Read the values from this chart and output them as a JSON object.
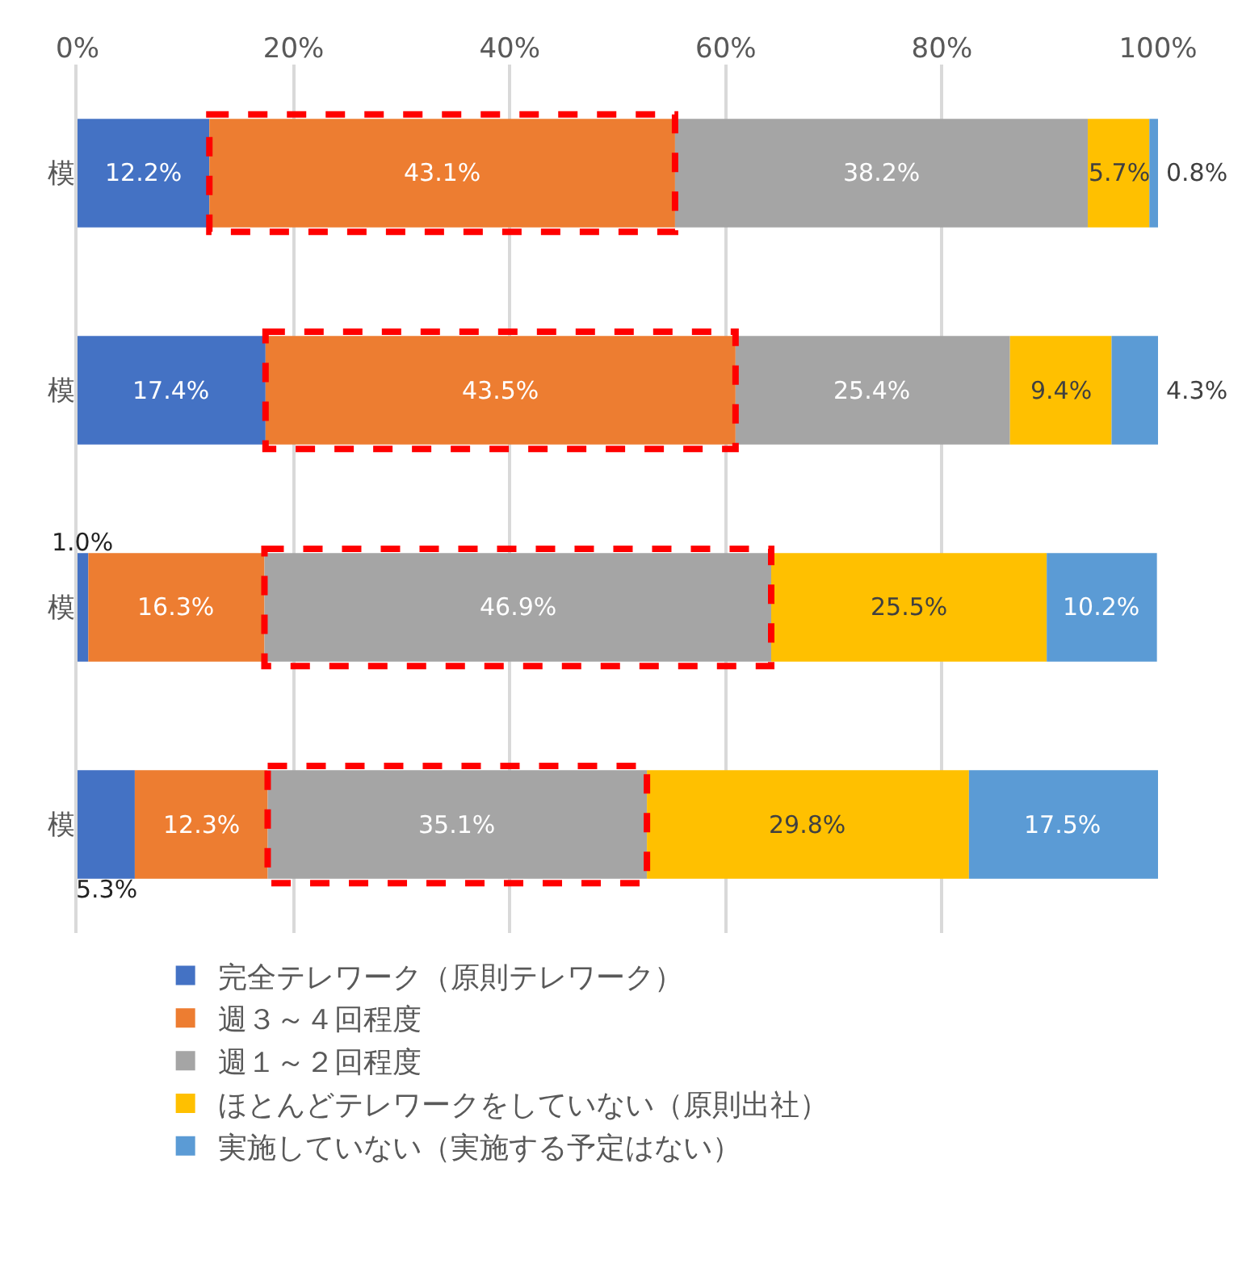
{
  "chart_data": {
    "type": "bar",
    "orientation": "horizontal",
    "stacked": true,
    "categories": [
      "模",
      "模",
      "模",
      "模"
    ],
    "series": [
      {
        "name": "完全テレワーク（原則テレワーク）",
        "color": "#4472c4",
        "values": [
          12.2,
          17.4,
          1.0,
          5.3
        ],
        "value_labels": [
          "12.2%",
          "17.4%",
          "1.0%",
          "5.3%"
        ]
      },
      {
        "name": "週３～４回程度",
        "color": "#ed7d31",
        "values": [
          43.1,
          43.5,
          16.3,
          12.3
        ],
        "value_labels": [
          "43.1%",
          "43.5%",
          "16.3%",
          "12.3%"
        ]
      },
      {
        "name": "週１～２回程度",
        "color": "#a5a5a5",
        "values": [
          38.2,
          25.4,
          46.9,
          35.1
        ],
        "value_labels": [
          "38.2%",
          "25.4%",
          "46.9%",
          "35.1%"
        ]
      },
      {
        "name": "ほとんどテレワークをしていない（原則出社）",
        "color": "#ffc000",
        "values": [
          5.7,
          9.4,
          25.5,
          29.8
        ],
        "value_labels": [
          "5.7%",
          "9.4%",
          "25.5%",
          "29.8%"
        ]
      },
      {
        "name": "実施していない（実施する予定はない）",
        "color": "#5b9bd5",
        "values": [
          0.8,
          4.3,
          10.2,
          17.5
        ],
        "value_labels": [
          "0.8%",
          "4.3%",
          "10.2%",
          "17.5%"
        ]
      }
    ],
    "xlim": [
      0,
      100
    ],
    "xticks": [
      {
        "value": 0,
        "label": "0%"
      },
      {
        "value": 20,
        "label": "20%"
      },
      {
        "value": 40,
        "label": "40%"
      },
      {
        "value": 60,
        "label": "60%"
      },
      {
        "value": 80,
        "label": "80%"
      },
      {
        "value": 100,
        "label": "100%"
      }
    ],
    "grid": "x",
    "legend": "bottom"
  }
}
